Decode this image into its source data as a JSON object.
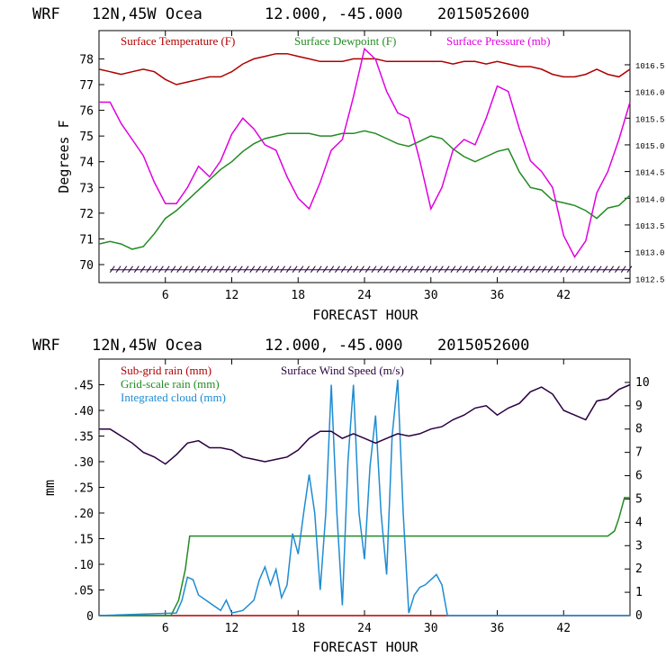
{
  "chart_data": [
    {
      "type": "line",
      "header": [
        "WRF",
        "12N,45W Ocea",
        "12.000, -45.000",
        "2015052600"
      ],
      "xlabel": "FORECAST HOUR",
      "ylabel": "Degrees F",
      "xlim": [
        0,
        48
      ],
      "xticks": [
        "6",
        "12",
        "18",
        "24",
        "30",
        "36",
        "42"
      ],
      "ylim_left": [
        69.3,
        79.1
      ],
      "yticks_left": [
        "70",
        "71",
        "72",
        "73",
        "74",
        "75",
        "76",
        "77",
        "78"
      ],
      "ylim_right": [
        1012.42,
        1017.14
      ],
      "yticks_right": [
        "1012.5",
        "1013.0",
        "1013.5",
        "1014.0",
        "1014.5",
        "1015.0",
        "1015.5",
        "1016.0",
        "1016.5"
      ],
      "colors": {
        "temperature": "#b00000",
        "dewpoint": "#228b22",
        "pressure": "#e000e0",
        "wind_barbs": "#2a0040"
      },
      "series": [
        {
          "name": "Surface Temperature (F)",
          "axis": "left",
          "color": "#b00000",
          "x": [
            0,
            1,
            2,
            3,
            4,
            5,
            6,
            7,
            8,
            9,
            10,
            11,
            12,
            13,
            14,
            15,
            16,
            17,
            18,
            19,
            20,
            21,
            22,
            23,
            24,
            25,
            26,
            27,
            28,
            29,
            30,
            31,
            32,
            33,
            34,
            35,
            36,
            37,
            38,
            39,
            40,
            41,
            42,
            43,
            44,
            45,
            46,
            47,
            48
          ],
          "values": [
            77.6,
            77.5,
            77.4,
            77.5,
            77.6,
            77.5,
            77.2,
            77.0,
            77.1,
            77.2,
            77.3,
            77.3,
            77.5,
            77.8,
            78.0,
            78.1,
            78.2,
            78.2,
            78.1,
            78.0,
            77.9,
            77.9,
            77.9,
            78.0,
            78.0,
            78.0,
            77.9,
            77.9,
            77.9,
            77.9,
            77.9,
            77.9,
            77.8,
            77.9,
            77.9,
            77.8,
            77.9,
            77.8,
            77.7,
            77.7,
            77.6,
            77.4,
            77.3,
            77.3,
            77.4,
            77.6,
            77.4,
            77.3,
            77.6
          ]
        },
        {
          "name": "Surface Dewpoint (F)",
          "axis": "left",
          "color": "#228b22",
          "x": [
            0,
            1,
            2,
            3,
            4,
            5,
            6,
            7,
            8,
            9,
            10,
            11,
            12,
            13,
            14,
            15,
            16,
            17,
            18,
            19,
            20,
            21,
            22,
            23,
            24,
            25,
            26,
            27,
            28,
            29,
            30,
            31,
            32,
            33,
            34,
            35,
            36,
            37,
            38,
            39,
            40,
            41,
            42,
            43,
            44,
            45,
            46,
            47,
            48
          ],
          "values": [
            70.8,
            70.9,
            70.8,
            70.6,
            70.7,
            71.2,
            71.8,
            72.1,
            72.5,
            72.9,
            73.3,
            73.7,
            74.0,
            74.4,
            74.7,
            74.9,
            75.0,
            75.1,
            75.1,
            75.1,
            75.0,
            75.0,
            75.1,
            75.1,
            75.2,
            75.1,
            74.9,
            74.7,
            74.6,
            74.8,
            75.0,
            74.9,
            74.5,
            74.2,
            74.0,
            74.2,
            74.4,
            74.5,
            73.6,
            73.0,
            72.9,
            72.5,
            72.4,
            72.3,
            72.1,
            71.8,
            72.2,
            72.3,
            72.7
          ]
        },
        {
          "name": "Surface Pressure (mb)",
          "axis": "right",
          "color": "#e000e0",
          "x": [
            0,
            1,
            2,
            3,
            4,
            5,
            6,
            7,
            8,
            9,
            10,
            11,
            12,
            13,
            14,
            15,
            16,
            17,
            18,
            19,
            20,
            21,
            22,
            23,
            24,
            25,
            26,
            27,
            28,
            29,
            30,
            31,
            32,
            33,
            34,
            35,
            36,
            37,
            38,
            39,
            40,
            41,
            42,
            43,
            44,
            45,
            46,
            47,
            48
          ],
          "values": [
            1015.8,
            1015.8,
            1015.4,
            1015.1,
            1014.8,
            1014.3,
            1013.9,
            1013.9,
            1014.2,
            1014.6,
            1014.4,
            1014.7,
            1015.2,
            1015.5,
            1015.3,
            1015.0,
            1014.9,
            1014.4,
            1014.0,
            1013.8,
            1014.3,
            1014.9,
            1015.1,
            1015.9,
            1016.8,
            1016.6,
            1016.0,
            1015.6,
            1015.5,
            1014.7,
            1013.8,
            1014.2,
            1014.9,
            1015.1,
            1015.0,
            1015.5,
            1016.1,
            1016.0,
            1015.3,
            1014.7,
            1014.5,
            1014.2,
            1013.3,
            1012.9,
            1013.2,
            1014.1,
            1014.5,
            1015.1,
            1015.8
          ]
        },
        {
          "name": "Wind barbs",
          "axis": "left",
          "color": "#2a0040",
          "x_range": [
            1,
            48
          ],
          "y": 69.8,
          "spacing_hours": 0.55
        }
      ]
    },
    {
      "type": "line",
      "header": [
        "WRF",
        "12N,45W Ocea",
        "12.000, -45.000",
        "2015052600"
      ],
      "xlabel": "FORECAST HOUR",
      "ylabel": "mm",
      "xlim": [
        0,
        48
      ],
      "xticks": [
        "6",
        "12",
        "18",
        "24",
        "30",
        "36",
        "42"
      ],
      "ylim_left": [
        0,
        0.5
      ],
      "yticks_left": [
        "0",
        ".05",
        ".10",
        ".15",
        ".20",
        ".25",
        ".30",
        ".35",
        ".40",
        ".45"
      ],
      "ylim_right": [
        0,
        11
      ],
      "yticks_right": [
        "0",
        "1",
        "2",
        "3",
        "4",
        "5",
        "6",
        "7",
        "8",
        "9",
        "10"
      ],
      "colors": {
        "subgrid_rain": "#b00000",
        "gridscale_rain": "#228b22",
        "cloud": "#1e8cd2",
        "wind": "#2a0040"
      },
      "series": [
        {
          "name": "Sub-grid rain (mm)",
          "axis": "left",
          "color": "#b00000",
          "x": [
            0,
            48
          ],
          "values": [
            0,
            0
          ]
        },
        {
          "name": "Grid-scale rain (mm)",
          "axis": "left",
          "color": "#228b22",
          "x": [
            0,
            6.5,
            7.2,
            7.8,
            8.2,
            45,
            46,
            46.6,
            47,
            47.5,
            48
          ],
          "values": [
            0,
            0,
            0.03,
            0.09,
            0.155,
            0.155,
            0.155,
            0.165,
            0.19,
            0.23,
            0.23
          ]
        },
        {
          "name": "Integrated cloud (mm)",
          "axis": "left",
          "color": "#1e8cd2",
          "x": [
            0,
            7,
            7.5,
            8,
            8.5,
            9,
            10,
            11,
            11.5,
            12,
            13,
            14,
            14.5,
            15,
            15.5,
            16,
            16.5,
            17,
            17.5,
            18,
            18.5,
            19,
            19.5,
            20,
            20.5,
            21,
            21.5,
            22,
            22.5,
            23,
            23.5,
            24,
            24.5,
            25,
            25.5,
            26,
            26.5,
            27,
            27.5,
            28,
            28.5,
            29,
            29.5,
            30,
            30.5,
            31,
            31.5,
            48
          ],
          "values": [
            0,
            0.005,
            0.03,
            0.075,
            0.07,
            0.04,
            0.025,
            0.01,
            0.03,
            0.005,
            0.01,
            0.03,
            0.07,
            0.095,
            0.06,
            0.09,
            0.035,
            0.06,
            0.16,
            0.12,
            0.2,
            0.275,
            0.2,
            0.05,
            0.2,
            0.45,
            0.2,
            0.02,
            0.3,
            0.45,
            0.2,
            0.11,
            0.29,
            0.39,
            0.2,
            0.08,
            0.35,
            0.46,
            0.2,
            0.005,
            0.04,
            0.055,
            0.06,
            0.07,
            0.08,
            0.06,
            0,
            0
          ]
        },
        {
          "name": "Surface Wind Speed (m/s)",
          "axis": "right",
          "color": "#2a0040",
          "x": [
            0,
            1,
            2,
            3,
            4,
            5,
            6,
            7,
            8,
            9,
            10,
            11,
            12,
            13,
            14,
            15,
            16,
            17,
            18,
            19,
            20,
            21,
            22,
            23,
            24,
            25,
            26,
            27,
            28,
            29,
            30,
            31,
            32,
            33,
            34,
            35,
            36,
            37,
            38,
            39,
            40,
            41,
            42,
            43,
            44,
            45,
            46,
            47,
            48
          ],
          "values": [
            8.0,
            8.0,
            7.7,
            7.4,
            7.0,
            6.8,
            6.5,
            6.9,
            7.4,
            7.5,
            7.2,
            7.2,
            7.1,
            6.8,
            6.7,
            6.6,
            6.7,
            6.8,
            7.1,
            7.6,
            7.9,
            7.9,
            7.6,
            7.8,
            7.6,
            7.4,
            7.6,
            7.8,
            7.7,
            7.8,
            8.0,
            8.1,
            8.4,
            8.6,
            8.9,
            9.0,
            8.6,
            8.9,
            9.1,
            9.6,
            9.8,
            9.5,
            8.8,
            8.6,
            8.4,
            9.2,
            9.3,
            9.7,
            9.9
          ]
        }
      ]
    }
  ]
}
